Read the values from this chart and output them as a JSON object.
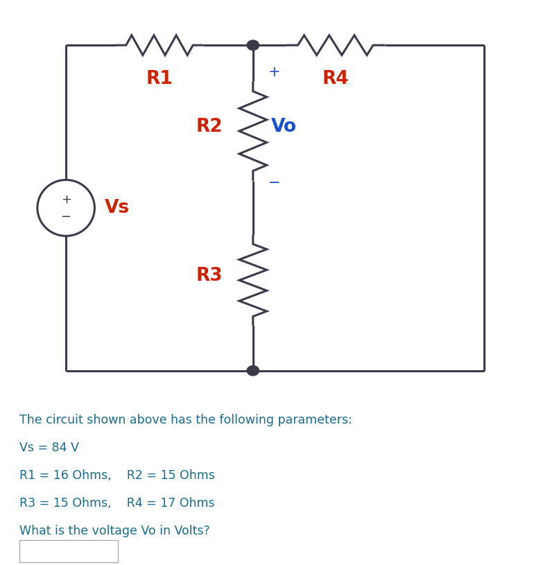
{
  "bg_color": "#ffffff",
  "outer_bg": "#e8e8e8",
  "wire_color": "#3a3a4a",
  "red_color": "#cc2200",
  "blue_color": "#1a4fcc",
  "text_color": "#1a6b8a",
  "title_text": "The circuit shown above has the following parameters:",
  "param1": "Vs = 84 V",
  "param2": "R1 = 16 Ohms,    R2 = 15 Ohms",
  "param3": "R3 = 15 Ohms,    R4 = 17 Ohms",
  "param4": "What is the voltage Vo in Volts?",
  "R1_label": "R1",
  "R2_label": "R2",
  "R3_label": "R3",
  "R4_label": "R4",
  "Vs_label": "Vs",
  "Vo_label": "Vo"
}
